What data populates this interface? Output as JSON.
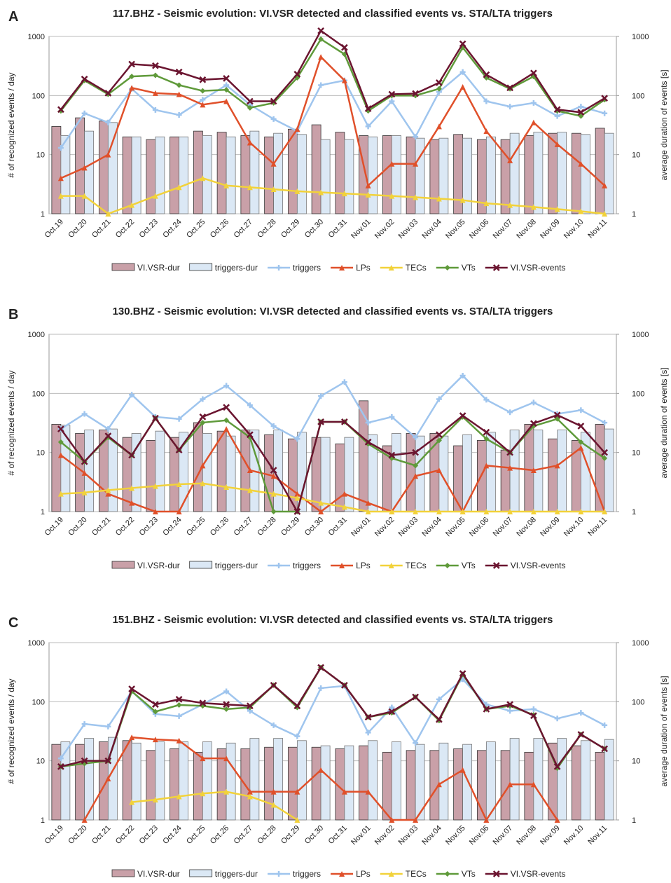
{
  "chart_data": [
    {
      "type": "combo",
      "panel": "A",
      "title": "117.BHZ - Seismic evolution: VI.VSR detected and classified events vs. STA/LTA triggers",
      "ylabel": "# of recognized events / day",
      "y2label": "average duration of events [s]",
      "log_scale": true,
      "grid": true,
      "ylim": [
        1,
        1000
      ],
      "yticks": [
        1,
        10,
        100,
        1000
      ],
      "y2lim": [
        1,
        1000
      ],
      "y2ticks": [
        1,
        10,
        100,
        1000
      ],
      "categories": [
        "Oct.19",
        "Oct.20",
        "Oct.21",
        "Oct.22",
        "Oct.23",
        "Oct.24",
        "Oct.25",
        "Oct.26",
        "Oct.27",
        "Oct.28",
        "Oct.29",
        "Oct.30",
        "Oct.31",
        "Nov.01",
        "Nov.02",
        "Nov.03",
        "Nov.04",
        "Nov.05",
        "Nov.06",
        "Nov.07",
        "Nov.08",
        "Nov.09",
        "Nov.10",
        "Nov.11"
      ],
      "series": [
        {
          "name": "VI.VSR-dur",
          "kind": "bar",
          "axis": "y2",
          "color": "#c9a0a8",
          "values": [
            30,
            42,
            37,
            20,
            18,
            20,
            25,
            24,
            21,
            20,
            27,
            32,
            24,
            21,
            21,
            20,
            18,
            22,
            18,
            18,
            21,
            23,
            23,
            28
          ]
        },
        {
          "name": "triggers-dur",
          "kind": "bar",
          "axis": "y2",
          "color": "#dbe8f5",
          "values": [
            21,
            25,
            35,
            20,
            20,
            20,
            21,
            20,
            25,
            23,
            22,
            18,
            18,
            20,
            21,
            19,
            19,
            19,
            20,
            23,
            24,
            24,
            22,
            23
          ]
        },
        {
          "name": "triggers",
          "kind": "line",
          "marker": "star",
          "color": "#9fc5ee",
          "values": [
            13,
            50,
            35,
            130,
            57,
            47,
            85,
            150,
            70,
            40,
            25,
            150,
            180,
            30,
            80,
            20,
            115,
            250,
            80,
            65,
            75,
            45,
            65,
            50
          ]
        },
        {
          "name": "LPs",
          "kind": "line",
          "marker": "triangle",
          "color": "#e0502a",
          "values": [
            4,
            6,
            10,
            135,
            110,
            105,
            70,
            80,
            16,
            7,
            27,
            450,
            180,
            3,
            7,
            7,
            30,
            140,
            25,
            8,
            35,
            15,
            7,
            3
          ]
        },
        {
          "name": "TECs",
          "kind": "line",
          "marker": "triangle",
          "color": "#f2d23a",
          "values": [
            2,
            2,
            1,
            1.4,
            2,
            2.8,
            4,
            3,
            2.8,
            2.6,
            2.4,
            2.3,
            2.2,
            2.1,
            2,
            1.9,
            1.8,
            1.7,
            1.5,
            1.4,
            1.3,
            1.2,
            1.1,
            1
          ]
        },
        {
          "name": "VTs",
          "kind": "line",
          "marker": "diamond",
          "color": "#5f9a3a",
          "values": [
            55,
            180,
            105,
            210,
            220,
            150,
            120,
            125,
            62,
            75,
            200,
            900,
            500,
            55,
            100,
            100,
            130,
            650,
            200,
            130,
            210,
            55,
            45,
            85
          ]
        },
        {
          "name": "VI.VSR-events",
          "kind": "line",
          "marker": "x",
          "color": "#6b1530",
          "values": [
            58,
            190,
            110,
            340,
            320,
            250,
            185,
            195,
            80,
            80,
            230,
            1250,
            650,
            60,
            105,
            108,
            165,
            750,
            225,
            135,
            240,
            58,
            52,
            90
          ]
        }
      ]
    },
    {
      "type": "combo",
      "panel": "B",
      "title": "130.BHZ - Seismic evolution: VI.VSR detected and classified events vs. STA/LTA triggers",
      "ylabel": "# of recognized events / day",
      "y2label": "average duration of events [s]",
      "log_scale": true,
      "grid": true,
      "ylim": [
        1,
        1000
      ],
      "yticks": [
        1,
        10,
        100,
        1000
      ],
      "y2lim": [
        1,
        1000
      ],
      "y2ticks": [
        1,
        10,
        100,
        1000
      ],
      "categories": [
        "Oct.19",
        "Oct.20",
        "Oct.21",
        "Oct.22",
        "Oct.23",
        "Oct.24",
        "Oct.25",
        "Oct.26",
        "Oct.27",
        "Oct.28",
        "Oct.29",
        "Oct.30",
        "Oct.31",
        "Nov.01",
        "Nov.02",
        "Nov.03",
        "Nov.04",
        "Nov.05",
        "Nov.06",
        "Nov.07",
        "Nov.08",
        "Nov.09",
        "Nov.10",
        "Nov.11"
      ],
      "series": [
        {
          "name": "VI.VSR-dur",
          "kind": "bar",
          "axis": "y2",
          "color": "#c9a0a8",
          "values": [
            30,
            21,
            24,
            18,
            16,
            18,
            32,
            23,
            24,
            20,
            17,
            18,
            14,
            75,
            13,
            21,
            21,
            13,
            16,
            11,
            30,
            17,
            16,
            30
          ]
        },
        {
          "name": "triggers-dur",
          "kind": "bar",
          "axis": "y2",
          "color": "#dbe8f5",
          "values": [
            29,
            24,
            25,
            21,
            23,
            22,
            21,
            19,
            24,
            24,
            22,
            18,
            18,
            20,
            21,
            19,
            19,
            20,
            22,
            24,
            24,
            24,
            22,
            25
          ]
        },
        {
          "name": "triggers",
          "kind": "line",
          "marker": "star",
          "color": "#9fc5ee",
          "values": [
            25,
            45,
            25,
            95,
            40,
            37,
            80,
            135,
            63,
            28,
            17,
            90,
            155,
            32,
            40,
            18,
            80,
            200,
            78,
            48,
            70,
            45,
            52,
            32
          ]
        },
        {
          "name": "LPs",
          "kind": "line",
          "marker": "triangle",
          "color": "#e0502a",
          "values": [
            9,
            4.5,
            2,
            1.4,
            1,
            1,
            6,
            25,
            5,
            4,
            2,
            1,
            2,
            1.4,
            1,
            4,
            5,
            1,
            6,
            5.5,
            5,
            6,
            12,
            1
          ]
        },
        {
          "name": "TECs",
          "kind": "line",
          "marker": "triangle",
          "color": "#f2d23a",
          "values": [
            2,
            2.1,
            2.3,
            2.5,
            2.7,
            2.9,
            3,
            2.6,
            2.3,
            2,
            1.7,
            1.4,
            1.2,
            1,
            1,
            1,
            1,
            1,
            1,
            1,
            1,
            1,
            1,
            1
          ]
        },
        {
          "name": "VTs",
          "kind": "line",
          "marker": "diamond",
          "color": "#5f9a3a",
          "values": [
            15,
            7,
            18,
            9,
            38,
            11,
            32,
            35,
            18,
            1,
            1,
            33,
            33,
            14,
            8,
            6,
            16,
            40,
            17,
            10,
            28,
            37,
            15,
            8
          ]
        },
        {
          "name": "VI.VSR-events",
          "kind": "line",
          "marker": "x",
          "color": "#6b1530",
          "values": [
            25,
            7,
            19,
            9,
            38,
            11,
            40,
            58,
            20,
            5,
            1,
            33,
            33,
            15,
            9,
            10,
            20,
            42,
            22,
            10,
            31,
            43,
            28,
            10
          ]
        }
      ]
    },
    {
      "type": "combo",
      "panel": "C",
      "title": "151.BHZ - Seismic evolution: VI.VSR detected and classified events vs. STA/LTA triggers",
      "ylabel": "# of recognized events / day",
      "y2label": "average duration of events [s]",
      "log_scale": true,
      "grid": true,
      "ylim": [
        1,
        1000
      ],
      "yticks": [
        1,
        10,
        100,
        1000
      ],
      "y2lim": [
        1,
        1000
      ],
      "y2ticks": [
        1,
        10,
        100,
        1000
      ],
      "categories": [
        "Oct.19",
        "Oct.20",
        "Oct.21",
        "Oct.22",
        "Oct.23",
        "Oct.24",
        "Oct.25",
        "Oct.26",
        "Oct.27",
        "Oct.28",
        "Oct.29",
        "Oct.30",
        "Oct.31",
        "Nov.01",
        "Nov.02",
        "Nov.03",
        "Nov.04",
        "Nov.05",
        "Nov.06",
        "Nov.07",
        "Nov.08",
        "Nov.09",
        "Nov.10",
        "Nov.11"
      ],
      "series": [
        {
          "name": "VI.VSR-dur",
          "kind": "bar",
          "axis": "y2",
          "color": "#c9a0a8",
          "values": [
            19,
            19,
            21,
            22,
            15,
            16,
            14,
            16,
            16,
            17,
            17,
            17,
            16,
            18,
            14,
            15,
            15,
            16,
            15,
            15,
            14,
            20,
            18,
            14
          ]
        },
        {
          "name": "triggers-dur",
          "kind": "bar",
          "axis": "y2",
          "color": "#dbe8f5",
          "values": [
            21,
            24,
            25,
            20,
            21,
            21,
            21,
            20,
            24,
            24,
            22,
            18,
            18,
            22,
            21,
            19,
            20,
            19,
            21,
            24,
            24,
            24,
            22,
            23
          ]
        },
        {
          "name": "triggers",
          "kind": "line",
          "marker": "star",
          "color": "#9fc5ee",
          "values": [
            11,
            42,
            38,
            150,
            62,
            57,
            90,
            150,
            70,
            40,
            26,
            170,
            185,
            30,
            80,
            20,
            110,
            240,
            90,
            70,
            75,
            52,
            65,
            40
          ]
        },
        {
          "name": "LPs",
          "kind": "line",
          "marker": "triangle",
          "color": "#e0502a",
          "values": [
            null,
            1,
            5,
            25,
            23,
            22,
            11,
            11,
            3,
            3,
            3,
            7,
            3,
            3,
            1,
            1,
            4,
            7,
            1,
            4,
            4,
            1,
            null,
            null
          ]
        },
        {
          "name": "TECs",
          "kind": "line",
          "marker": "triangle",
          "color": "#f2d23a",
          "values": [
            null,
            null,
            null,
            2,
            2.2,
            2.5,
            2.8,
            3,
            2.5,
            1.8,
            1,
            null,
            null,
            null,
            null,
            null,
            null,
            null,
            null,
            null,
            null,
            null,
            null,
            null
          ]
        },
        {
          "name": "VTs",
          "kind": "line",
          "marker": "diamond",
          "color": "#5f9a3a",
          "values": [
            8,
            9,
            10,
            150,
            68,
            88,
            85,
            75,
            80,
            190,
            80,
            380,
            190,
            55,
            65,
            120,
            48,
            290,
            75,
            85,
            60,
            7.5,
            28,
            16
          ]
        },
        {
          "name": "VI.VSR-events",
          "kind": "line",
          "marker": "x",
          "color": "#6b1530",
          "values": [
            8,
            10,
            10,
            165,
            90,
            110,
            95,
            90,
            85,
            190,
            85,
            380,
            190,
            55,
            68,
            120,
            50,
            300,
            75,
            90,
            58,
            8,
            28,
            16
          ]
        }
      ]
    }
  ]
}
